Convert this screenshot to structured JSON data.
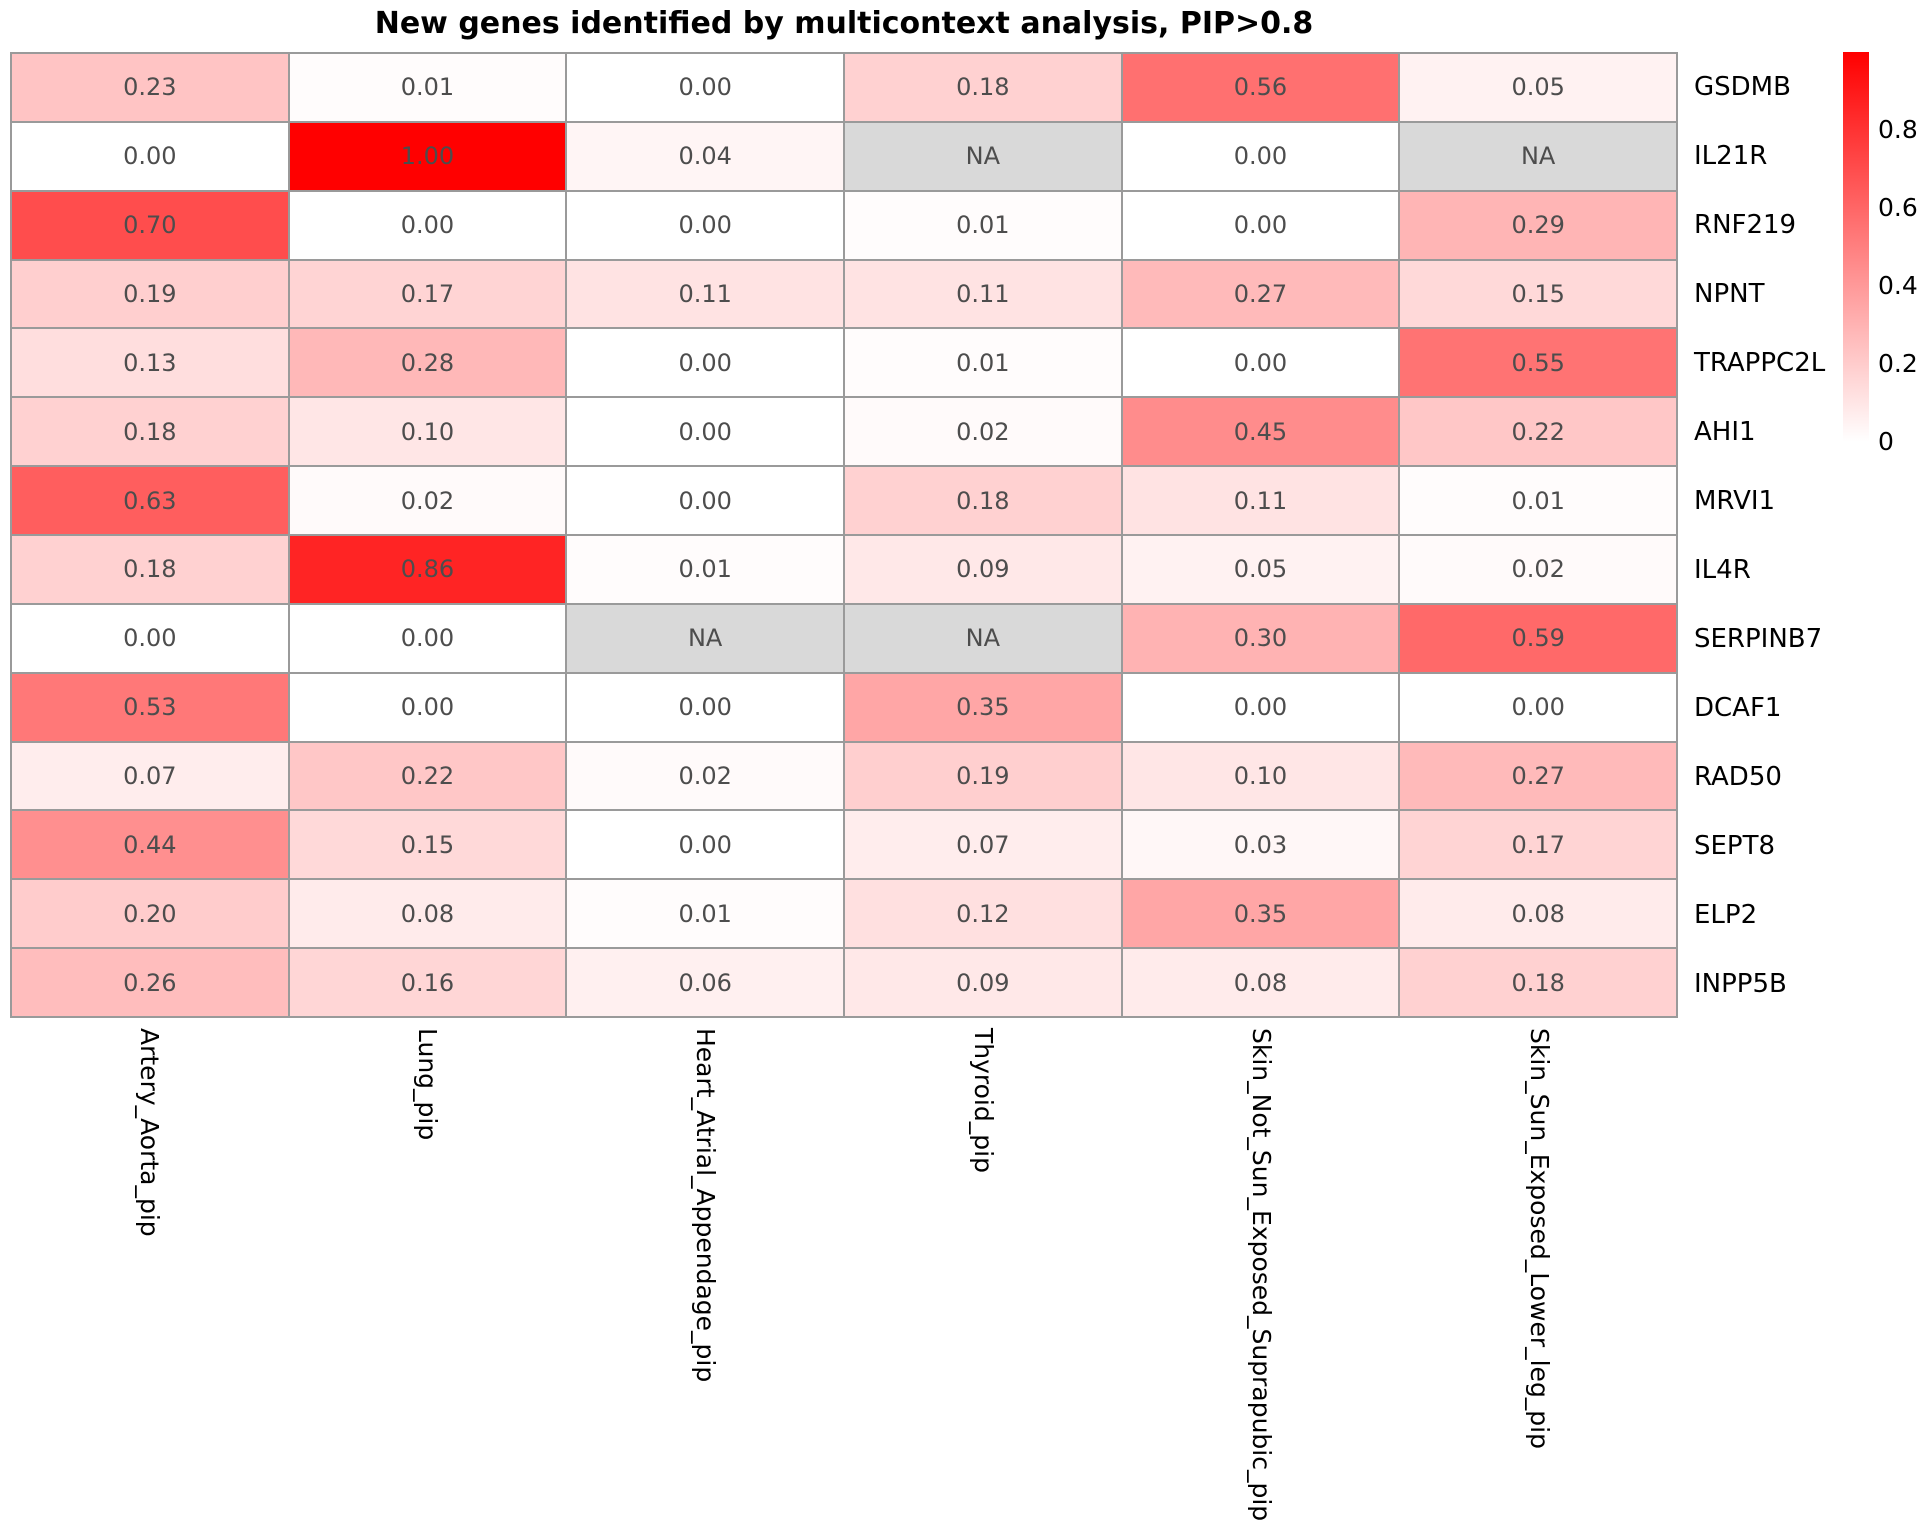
{
  "title": "New genes identified by multicontext analysis, PIP>0.8",
  "colors": {
    "max_color": "#ff0000",
    "min_color": "#ffffff",
    "na_cell_color": "#d9d9d9",
    "cell_border_color": "#9a9a9a",
    "cell_text_color": "#4d4d4d",
    "label_text_color": "#000000"
  },
  "na_label": "NA",
  "chart_data": {
    "type": "heatmap",
    "title": "New genes identified by multicontext analysis, PIP>0.8",
    "rows": [
      "GSDMB",
      "IL21R",
      "RNF219",
      "NPNT",
      "TRAPPC2L",
      "AHI1",
      "MRVI1",
      "IL4R",
      "SERPINB7",
      "DCAF1",
      "RAD50",
      "SEPT8",
      "ELP2",
      "INPP5B"
    ],
    "columns": [
      "Artery_Aorta_pip",
      "Lung_pip",
      "Heart_Atrial_Appendage_pip",
      "Thyroid_pip",
      "Skin_Not_Sun_Exposed_Suprapubic_pip",
      "Skin_Sun_Exposed_Lower_leg_pip"
    ],
    "values": [
      [
        0.23,
        0.01,
        0.0,
        0.18,
        0.56,
        0.05
      ],
      [
        0.0,
        1.0,
        0.04,
        null,
        0.0,
        null
      ],
      [
        0.7,
        0.0,
        0.0,
        0.01,
        0.0,
        0.29
      ],
      [
        0.19,
        0.17,
        0.11,
        0.11,
        0.27,
        0.15
      ],
      [
        0.13,
        0.28,
        0.0,
        0.01,
        0.0,
        0.55
      ],
      [
        0.18,
        0.1,
        0.0,
        0.02,
        0.45,
        0.22
      ],
      [
        0.63,
        0.02,
        0.0,
        0.18,
        0.11,
        0.01
      ],
      [
        0.18,
        0.86,
        0.01,
        0.09,
        0.05,
        0.02
      ],
      [
        0.0,
        0.0,
        null,
        null,
        0.3,
        0.59
      ],
      [
        0.53,
        0.0,
        0.0,
        0.35,
        0.0,
        0.0
      ],
      [
        0.07,
        0.22,
        0.02,
        0.19,
        0.1,
        0.27
      ],
      [
        0.44,
        0.15,
        0.0,
        0.07,
        0.03,
        0.17
      ],
      [
        0.2,
        0.08,
        0.01,
        0.12,
        0.35,
        0.08
      ],
      [
        0.26,
        0.16,
        0.06,
        0.09,
        0.08,
        0.18
      ]
    ],
    "value_decimals": 2,
    "colorscale_domain": [
      0,
      1
    ],
    "grid": true,
    "legend": {
      "position": "right",
      "tick_labels": [
        "0.8",
        "0.6",
        "0.4",
        "0.2",
        "0"
      ],
      "tick_values": [
        0.8,
        0.6,
        0.4,
        0.2,
        0
      ],
      "range": [
        0,
        1
      ]
    }
  }
}
